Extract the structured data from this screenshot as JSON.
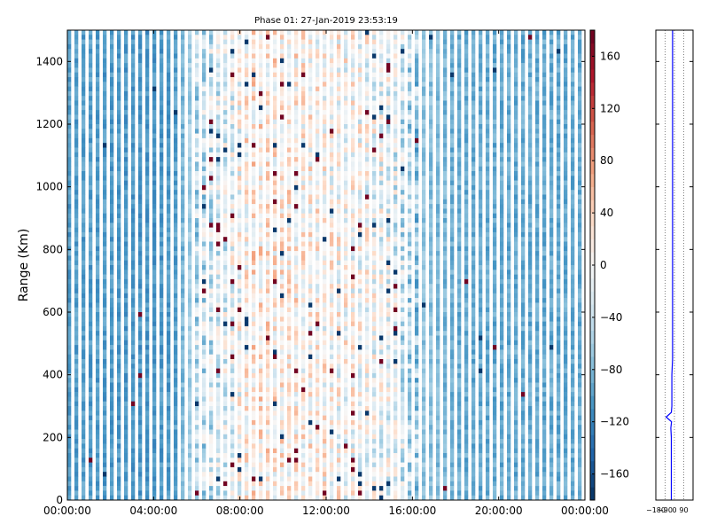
{
  "chart_data": {
    "type": "heatmap",
    "title": "Phase 01: 27-Jan-2019 23:53:19",
    "ylabel": "Range (Km)",
    "xlabel": "",
    "x_ticks": [
      "00:00:00",
      "04:00:00",
      "08:00:00",
      "12:00:00",
      "16:00:00",
      "20:00:00",
      "00:00:00"
    ],
    "x_range_hours": [
      0,
      24
    ],
    "y_ticks": [
      0,
      200,
      400,
      600,
      800,
      1000,
      1200,
      1400
    ],
    "ylim": [
      0,
      1500
    ],
    "colorbar": {
      "ticks": [
        "160",
        "120",
        "80",
        "40",
        "0",
        "−40",
        "−80",
        "−120",
        "−160"
      ],
      "tick_values": [
        160,
        120,
        80,
        40,
        0,
        -40,
        -80,
        -120,
        -160
      ],
      "range": [
        -180,
        180
      ],
      "colormap": "RdBu_r",
      "colors": [
        "#053061",
        "#2166ac",
        "#4393c3",
        "#92c5de",
        "#d1e5f0",
        "#f7f7f7",
        "#fddbc7",
        "#f4a582",
        "#d6604d",
        "#b2182b",
        "#67001f"
      ]
    },
    "column_mean_phase": [
      [
        0,
        -100
      ],
      [
        2,
        -102
      ],
      [
        4,
        -108
      ],
      [
        5,
        -100
      ],
      [
        6,
        -45
      ],
      [
        7.5,
        -20
      ],
      [
        8.5,
        20
      ],
      [
        10,
        15
      ],
      [
        12,
        5
      ],
      [
        13.5,
        0
      ],
      [
        15,
        -15
      ],
      [
        16.5,
        -70
      ],
      [
        18,
        -90
      ],
      [
        20,
        -92
      ],
      [
        22,
        -92
      ],
      [
        24,
        -92
      ]
    ],
    "range_profile": {
      "x_ticks": [
        "−180",
        "−90",
        "0",
        "90"
      ],
      "x_tick_values": [
        -180,
        -90,
        0,
        90
      ],
      "xlim": [
        -180,
        180
      ],
      "line_color": "#0000ff",
      "points": [
        [
          -30,
          0
        ],
        [
          -30,
          200
        ],
        [
          -35,
          230
        ],
        [
          -28,
          250
        ],
        [
          -80,
          265
        ],
        [
          -30,
          280
        ],
        [
          -25,
          300
        ],
        [
          -25,
          400
        ],
        [
          -18,
          450
        ],
        [
          -18,
          1500
        ]
      ]
    },
    "grid": false
  }
}
